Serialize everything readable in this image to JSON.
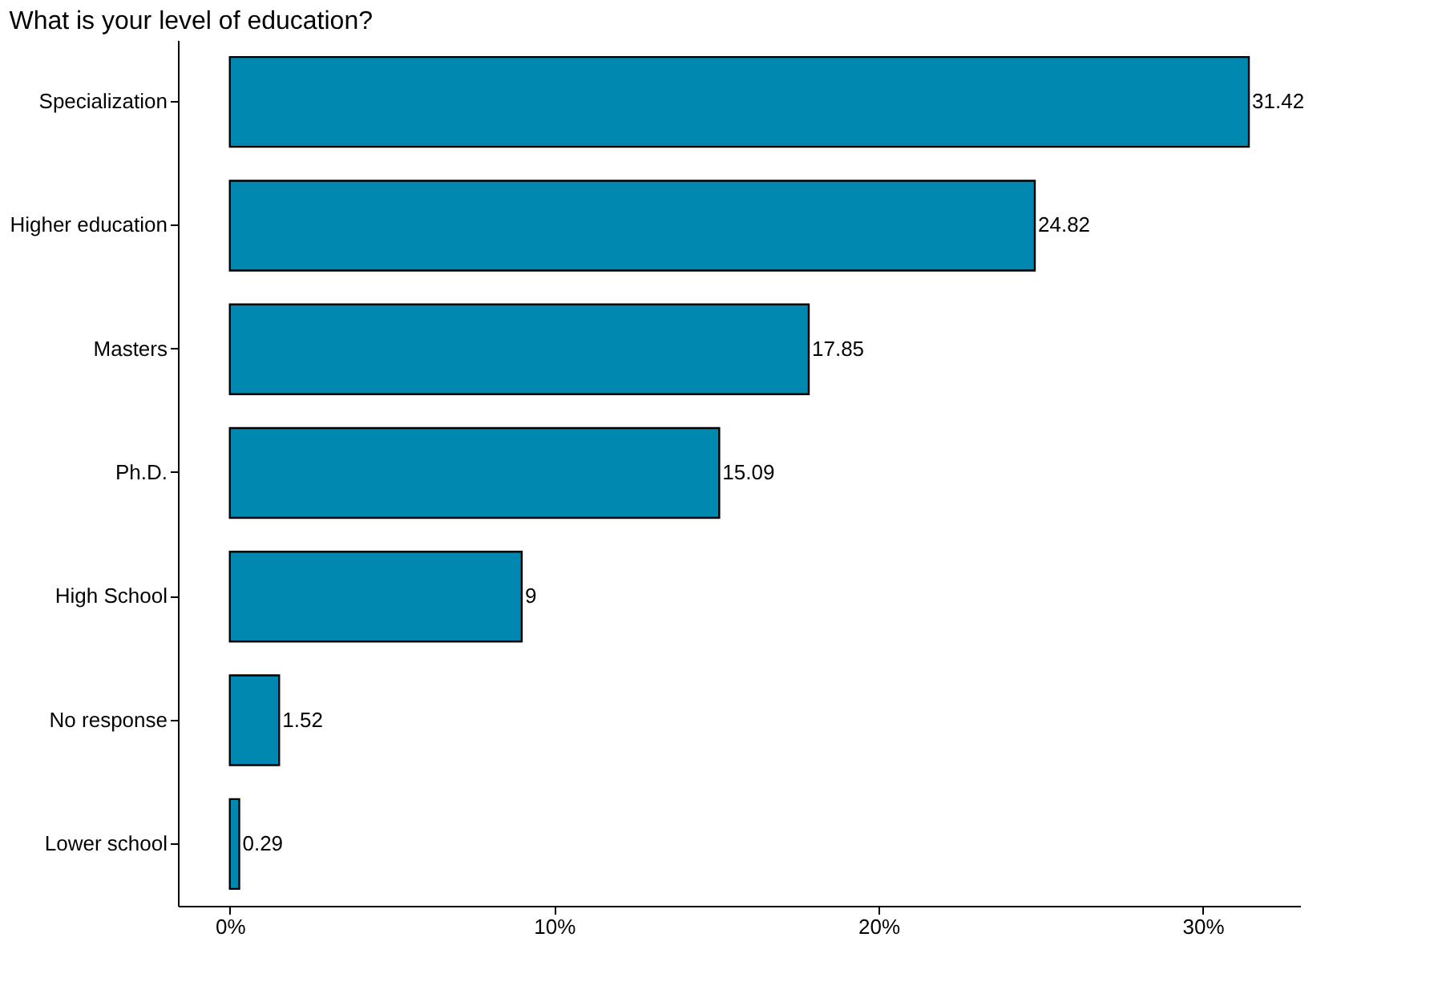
{
  "chart_data": {
    "type": "bar",
    "orientation": "horizontal",
    "title": "What is your level of education?",
    "categories": [
      "Specialization",
      "Higher education",
      "Masters",
      "Ph.D.",
      "High School",
      "No response",
      "Lower school"
    ],
    "values": [
      31.42,
      24.82,
      17.85,
      15.09,
      9,
      1.52,
      0.29
    ],
    "color": "#0088b0",
    "data_labels": true,
    "grid": false,
    "xlim": [
      -1.6,
      33
    ],
    "xticks": [
      {
        "value": 0,
        "label": "0%"
      },
      {
        "value": 10,
        "label": "10%"
      },
      {
        "value": 20,
        "label": "20%"
      },
      {
        "value": 30,
        "label": "30%"
      }
    ]
  }
}
